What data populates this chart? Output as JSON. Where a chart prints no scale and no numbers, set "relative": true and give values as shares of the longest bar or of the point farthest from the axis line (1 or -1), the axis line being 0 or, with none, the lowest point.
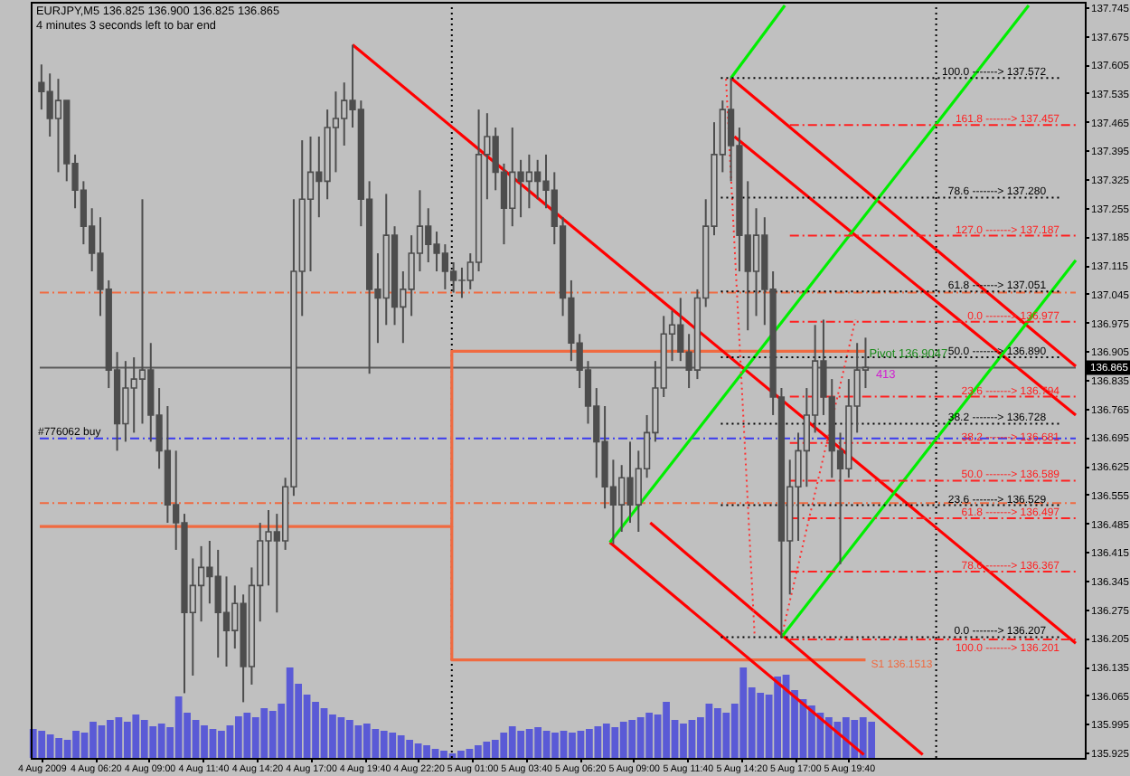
{
  "chart_data": [
    {
      "type": "candlestick",
      "title": "EURJPY,M5 136.825 136.900 136.825 136.865",
      "subtitle": "4 minutes 3 seconds left to bar end",
      "color": "#4d4d4d",
      "x": [
        "2009-08-04T03:40",
        "2009-08-04T04:05",
        "2009-08-04T04:30",
        "2009-08-04T04:55",
        "2009-08-04T05:20",
        "2009-08-04T05:45",
        "2009-08-04T06:10",
        "2009-08-04T06:35",
        "2009-08-04T07:00",
        "2009-08-04T07:25",
        "2009-08-04T07:50",
        "2009-08-04T08:15",
        "2009-08-04T08:40",
        "2009-08-04T09:05",
        "2009-08-04T09:30",
        "2009-08-04T09:55",
        "2009-08-04T10:20",
        "2009-08-04T10:45",
        "2009-08-04T11:10",
        "2009-08-04T11:35",
        "2009-08-04T12:00",
        "2009-08-04T12:25",
        "2009-08-04T12:50",
        "2009-08-04T13:15",
        "2009-08-04T13:40",
        "2009-08-04T14:05",
        "2009-08-04T14:30",
        "2009-08-04T14:55",
        "2009-08-04T15:20",
        "2009-08-04T15:45",
        "2009-08-04T16:10",
        "2009-08-04T16:35",
        "2009-08-04T17:00",
        "2009-08-04T17:25",
        "2009-08-04T17:50",
        "2009-08-04T18:15",
        "2009-08-04T18:40",
        "2009-08-04T19:05",
        "2009-08-04T19:30",
        "2009-08-04T19:55",
        "2009-08-04T20:20",
        "2009-08-04T20:45",
        "2009-08-04T21:10",
        "2009-08-04T21:35",
        "2009-08-04T22:00",
        "2009-08-04T22:25",
        "2009-08-04T22:50",
        "2009-08-04T23:15",
        "2009-08-04T23:40",
        "2009-08-05T00:05",
        "2009-08-05T00:30",
        "2009-08-05T00:55",
        "2009-08-05T01:20",
        "2009-08-05T01:45",
        "2009-08-05T02:10",
        "2009-08-05T02:35",
        "2009-08-05T03:00",
        "2009-08-05T03:25",
        "2009-08-05T03:50",
        "2009-08-05T04:15",
        "2009-08-05T04:40",
        "2009-08-05T05:05",
        "2009-08-05T05:30",
        "2009-08-05T05:55",
        "2009-08-05T06:20",
        "2009-08-05T06:45",
        "2009-08-05T07:10",
        "2009-08-05T07:35",
        "2009-08-05T08:00",
        "2009-08-05T08:25",
        "2009-08-05T08:50",
        "2009-08-05T09:15",
        "2009-08-05T09:40",
        "2009-08-05T10:05",
        "2009-08-05T10:30",
        "2009-08-05T10:55",
        "2009-08-05T11:20",
        "2009-08-05T11:45",
        "2009-08-05T12:10",
        "2009-08-05T12:35",
        "2009-08-05T13:00",
        "2009-08-05T13:25",
        "2009-08-05T13:50",
        "2009-08-05T14:15",
        "2009-08-05T14:40",
        "2009-08-05T15:05",
        "2009-08-05T15:30",
        "2009-08-05T15:55",
        "2009-08-05T16:20",
        "2009-08-05T16:45",
        "2009-08-05T17:10",
        "2009-08-05T17:35",
        "2009-08-05T18:00",
        "2009-08-05T18:25",
        "2009-08-05T18:50",
        "2009-08-05T19:15",
        "2009-08-05T19:40",
        "2009-08-05T20:05",
        "2009-08-05T20:30"
      ],
      "ohlc": [
        [
          137.561,
          137.605,
          137.495,
          137.539
        ],
        [
          137.539,
          137.583,
          137.429,
          137.473
        ],
        [
          137.473,
          137.57,
          137.342,
          137.517
        ],
        [
          137.517,
          137.517,
          137.32,
          137.363
        ],
        [
          137.363,
          137.385,
          137.254,
          137.298
        ],
        [
          137.298,
          137.32,
          137.166,
          137.21
        ],
        [
          137.21,
          137.254,
          137.1,
          137.144
        ],
        [
          137.144,
          137.232,
          136.991,
          137.056
        ],
        [
          137.056,
          137.078,
          136.815,
          136.859
        ],
        [
          136.859,
          136.903,
          136.662,
          136.728
        ],
        [
          136.728,
          136.881,
          136.684,
          136.815
        ],
        [
          136.815,
          136.89,
          136.706,
          136.837
        ],
        [
          136.837,
          137.276,
          136.728,
          136.859
        ],
        [
          136.859,
          136.925,
          136.684,
          136.749
        ],
        [
          136.749,
          136.815,
          136.618,
          136.662
        ],
        [
          136.662,
          136.771,
          136.486,
          136.53
        ],
        [
          136.53,
          136.662,
          136.42,
          136.486
        ],
        [
          136.486,
          136.508,
          136.07,
          136.267
        ],
        [
          136.267,
          136.399,
          136.113,
          136.333
        ],
        [
          136.333,
          136.429,
          136.245,
          136.377
        ],
        [
          136.377,
          136.442,
          136.289,
          136.355
        ],
        [
          136.355,
          136.42,
          136.157,
          136.267
        ],
        [
          136.267,
          136.355,
          136.135,
          136.223
        ],
        [
          136.223,
          136.333,
          136.179,
          136.289
        ],
        [
          136.289,
          136.311,
          136.048,
          136.135
        ],
        [
          136.135,
          136.377,
          136.091,
          136.333
        ],
        [
          136.333,
          136.486,
          136.245,
          136.442
        ],
        [
          136.442,
          136.517,
          136.333,
          136.464
        ],
        [
          136.464,
          136.508,
          136.267,
          136.442
        ],
        [
          136.442,
          136.596,
          136.42,
          136.574
        ],
        [
          136.574,
          137.276,
          136.552,
          137.1
        ],
        [
          137.1,
          137.42,
          136.991,
          137.276
        ],
        [
          137.276,
          137.429,
          137.1,
          137.342
        ],
        [
          137.342,
          137.429,
          137.232,
          137.32
        ],
        [
          137.32,
          137.495,
          137.276,
          137.451
        ],
        [
          137.451,
          137.539,
          137.342,
          137.473
        ],
        [
          137.473,
          137.561,
          137.407,
          137.517
        ],
        [
          137.517,
          137.653,
          137.451,
          137.495
        ],
        [
          137.495,
          137.517,
          137.21,
          137.276
        ],
        [
          137.276,
          137.32,
          136.85,
          137.056
        ],
        [
          137.056,
          137.144,
          136.925,
          137.035
        ],
        [
          137.035,
          137.289,
          136.969,
          137.188
        ],
        [
          137.188,
          137.21,
          136.969,
          137.013
        ],
        [
          137.013,
          137.1,
          136.925,
          137.056
        ],
        [
          137.056,
          137.188,
          136.991,
          137.144
        ],
        [
          137.144,
          137.298,
          137.1,
          137.21
        ],
        [
          137.21,
          137.254,
          137.122,
          137.166
        ],
        [
          137.166,
          137.197,
          137.1,
          137.144
        ],
        [
          137.144,
          137.166,
          137.056,
          137.1
        ],
        [
          137.1,
          137.122,
          137.048,
          137.078
        ],
        [
          137.078,
          137.109,
          137.035,
          137.078
        ],
        [
          137.078,
          137.144,
          137.056,
          137.122
        ],
        [
          137.122,
          137.495,
          137.1,
          137.385
        ],
        [
          137.385,
          137.486,
          137.276,
          137.429
        ],
        [
          137.429,
          137.451,
          137.298,
          137.342
        ],
        [
          137.342,
          137.363,
          137.166,
          137.254
        ],
        [
          137.254,
          137.451,
          137.21,
          137.342
        ],
        [
          137.342,
          137.372,
          137.232,
          137.32
        ],
        [
          137.32,
          137.385,
          137.254,
          137.342
        ],
        [
          137.342,
          137.372,
          137.276,
          137.32
        ],
        [
          137.32,
          137.385,
          137.254,
          137.298
        ],
        [
          137.298,
          137.342,
          137.166,
          137.21
        ],
        [
          137.21,
          137.232,
          136.991,
          137.035
        ],
        [
          137.035,
          137.078,
          136.881,
          136.925
        ],
        [
          136.925,
          136.947,
          136.815,
          136.859
        ],
        [
          136.859,
          136.881,
          136.728,
          136.771
        ],
        [
          136.771,
          136.815,
          136.596,
          136.684
        ],
        [
          136.684,
          136.771,
          136.521,
          136.574
        ],
        [
          136.574,
          136.64,
          136.434,
          136.53
        ],
        [
          136.53,
          136.627,
          136.464,
          136.596
        ],
        [
          136.596,
          136.684,
          136.486,
          136.53
        ],
        [
          136.53,
          136.662,
          136.464,
          136.618
        ],
        [
          136.618,
          136.749,
          136.596,
          136.706
        ],
        [
          136.706,
          136.881,
          136.684,
          136.815
        ],
        [
          136.815,
          136.991,
          136.793,
          136.947
        ],
        [
          136.947,
          137.004,
          136.881,
          136.969
        ],
        [
          136.969,
          137.035,
          136.881,
          136.903
        ],
        [
          136.903,
          136.947,
          136.815,
          136.859
        ],
        [
          136.859,
          137.056,
          136.837,
          137.035
        ],
        [
          137.035,
          137.276,
          137.013,
          137.21
        ],
        [
          137.21,
          137.464,
          137.188,
          137.385
        ],
        [
          137.385,
          137.517,
          137.342,
          137.495
        ],
        [
          137.495,
          137.572,
          137.32,
          137.407
        ],
        [
          137.407,
          137.451,
          137.1,
          137.188
        ],
        [
          137.188,
          137.32,
          136.956,
          137.1
        ],
        [
          137.1,
          137.254,
          136.991,
          137.188
        ],
        [
          137.188,
          137.232,
          136.969,
          137.056
        ],
        [
          137.056,
          137.1,
          136.749,
          136.793
        ],
        [
          136.793,
          136.815,
          136.207,
          136.442
        ],
        [
          136.442,
          136.64,
          136.311,
          136.574
        ],
        [
          136.574,
          136.706,
          136.442,
          136.662
        ],
        [
          136.662,
          136.815,
          136.574,
          136.749
        ],
        [
          136.749,
          136.969,
          136.706,
          136.881
        ],
        [
          136.881,
          136.982,
          136.749,
          136.793
        ],
        [
          136.793,
          136.837,
          136.596,
          136.662
        ],
        [
          136.662,
          136.706,
          136.385,
          136.618
        ],
        [
          136.618,
          136.837,
          136.596,
          136.771
        ],
        [
          136.771,
          136.925,
          136.706,
          136.859
        ],
        [
          136.859,
          136.938,
          136.815,
          136.865
        ]
      ],
      "xlim": [
        "2009-08-04T03:35",
        "2009-08-06T06:55"
      ],
      "xticks": [
        {
          "value": "2009-08-04T03:40",
          "label": "4 Aug 2009"
        },
        {
          "value": "2009-08-04T06:20",
          "label": "4 Aug 06:20"
        },
        {
          "value": "2009-08-04T09:00",
          "label": "4 Aug 09:00"
        },
        {
          "value": "2009-08-04T11:40",
          "label": "4 Aug 11:40"
        },
        {
          "value": "2009-08-04T14:20",
          "label": "4 Aug 14:20"
        },
        {
          "value": "2009-08-04T17:00",
          "label": "4 Aug 17:00"
        },
        {
          "value": "2009-08-04T19:40",
          "label": "4 Aug 19:40"
        },
        {
          "value": "2009-08-04T22:20",
          "label": "4 Aug 22:20"
        },
        {
          "value": "2009-08-05T01:00",
          "label": "5 Aug 01:00"
        },
        {
          "value": "2009-08-05T03:40",
          "label": "5 Aug 03:40"
        },
        {
          "value": "2009-08-05T06:20",
          "label": "5 Aug 06:20"
        },
        {
          "value": "2009-08-05T09:00",
          "label": "5 Aug 09:00"
        },
        {
          "value": "2009-08-05T11:40",
          "label": "5 Aug 11:40"
        },
        {
          "value": "2009-08-05T14:20",
          "label": "5 Aug 14:20"
        },
        {
          "value": "2009-08-05T17:00",
          "label": "5 Aug 17:00"
        },
        {
          "value": "2009-08-05T19:40",
          "label": "5 Aug 19:40"
        }
      ],
      "ylim": [
        135.912,
        137.758
      ],
      "yticks": [
        135.925,
        135.995,
        136.065,
        136.135,
        136.205,
        136.275,
        136.345,
        136.415,
        136.485,
        136.555,
        136.625,
        136.695,
        136.765,
        136.835,
        136.905,
        136.975,
        137.045,
        137.115,
        137.185,
        137.255,
        137.325,
        137.395,
        137.465,
        137.535,
        137.605,
        137.675,
        137.745
      ],
      "ref_lines": [
        {
          "axis": "x",
          "value": "2009-08-05T00:00",
          "color": "#000000",
          "line_style": "dotted"
        },
        {
          "axis": "x",
          "value": "2009-08-06T00:00",
          "color": "#000000",
          "line_style": "dotted"
        },
        {
          "axis": "y",
          "value": 137.048,
          "color": "#f06a40",
          "line_style": "dashed"
        },
        {
          "axis": "y",
          "value": 136.534,
          "color": "#f06a40",
          "line_style": "dashed"
        },
        {
          "axis": "y",
          "value": 136.692,
          "color": "#3a3af0",
          "line_style": "dashed",
          "label": "#776062 buy"
        },
        {
          "axis": "y",
          "value": 136.865,
          "color": "#5a5a5a",
          "line_style": "solid",
          "label": "136.865"
        }
      ],
      "annotations": [
        {
          "text": "Pivot 136.9047",
          "x": "2009-08-05T20:30",
          "y": 136.9047
        },
        {
          "text": "413",
          "x": "2009-08-05T20:50",
          "y": 136.855
        }
      ],
      "series": [
        {
          "type": "line",
          "x": [
            "2009-08-04T03:35",
            "2009-08-05T00:00",
            "2009-08-05T00:00",
            "2009-08-05T20:30"
          ],
          "values": [
            136.477,
            136.477,
            136.9047,
            136.9047
          ],
          "color": "#f06a40",
          "line_style": "solid"
        },
        {
          "type": "line",
          "name": "S1 136.1513",
          "x": [
            "2009-08-05T00:00",
            "2009-08-05T00:00",
            "2009-08-05T20:30"
          ],
          "values": [
            136.477,
            136.1513,
            136.1513
          ],
          "color": "#f06a40",
          "line_style": "solid"
        },
        {
          "type": "line",
          "x": [
            "2009-08-04T19:05",
            "2009-08-06T06:55"
          ],
          "values": [
            137.653,
            136.192
          ],
          "color": "#ff0000",
          "line_style": "solid"
        },
        {
          "type": "line",
          "x": [
            "2009-08-05T13:50",
            "2009-08-06T06:55"
          ],
          "values": [
            137.572,
            136.868
          ],
          "color": "#ff0000",
          "line_style": "solid"
        },
        {
          "type": "line",
          "x": [
            "2009-08-05T14:00",
            "2009-08-06T06:55"
          ],
          "values": [
            137.429,
            136.749
          ],
          "color": "#ff0000",
          "line_style": "solid"
        },
        {
          "type": "line",
          "x": [
            "2009-08-05T07:50",
            "2009-08-05T20:25"
          ],
          "values": [
            136.438,
            135.92
          ],
          "color": "#ff0000",
          "line_style": "solid"
        },
        {
          "type": "line",
          "x": [
            "2009-08-05T09:50",
            "2009-08-05T23:20"
          ],
          "values": [
            136.486,
            135.92
          ],
          "color": "#ff0000",
          "line_style": "solid"
        },
        {
          "type": "line",
          "x": [
            "2009-08-05T13:50",
            "2009-08-05T16:30"
          ],
          "values": [
            137.572,
            137.749
          ],
          "color": "#00ee00",
          "line_style": "solid"
        },
        {
          "type": "line",
          "x": [
            "2009-08-05T07:50",
            "2009-08-06T04:35"
          ],
          "values": [
            136.438,
            137.749
          ],
          "color": "#00ee00",
          "line_style": "solid"
        },
        {
          "type": "line",
          "x": [
            "2009-08-05T16:20",
            "2009-08-06T06:55"
          ],
          "values": [
            136.207,
            137.127
          ],
          "color": "#00ee00",
          "line_style": "solid"
        },
        {
          "type": "line",
          "x": [
            "2009-08-05T13:35",
            "2009-08-05T15:00"
          ],
          "values": [
            137.57,
            136.214
          ],
          "color": "#ff3030",
          "line_style": "dotted"
        },
        {
          "type": "line",
          "x": [
            "2009-08-05T16:20",
            "2009-08-05T20:00"
          ],
          "values": [
            136.207,
            136.982
          ],
          "color": "#ff3030",
          "line_style": "dotted"
        },
        {
          "type": "line",
          "name": "100.0 -------> 137.572",
          "x": [
            "2009-08-05T13:20",
            "2009-08-06T06:15"
          ],
          "values": [
            137.572,
            137.572
          ],
          "color": "#000000",
          "line_style": "dotted"
        },
        {
          "type": "line",
          "name": "78.6 -------> 137.280",
          "x": [
            "2009-08-05T13:20",
            "2009-08-06T06:15"
          ],
          "values": [
            137.28,
            137.28
          ],
          "color": "#000000",
          "line_style": "dotted"
        },
        {
          "type": "line",
          "name": "61.8 -------> 137.051",
          "x": [
            "2009-08-05T13:20",
            "2009-08-06T06:15"
          ],
          "values": [
            137.051,
            137.051
          ],
          "color": "#000000",
          "line_style": "dotted"
        },
        {
          "type": "line",
          "name": "50.0 -------> 136.890",
          "x": [
            "2009-08-05T13:20",
            "2009-08-06T06:15"
          ],
          "values": [
            136.89,
            136.89
          ],
          "color": "#000000",
          "line_style": "dotted"
        },
        {
          "type": "line",
          "name": "38.2 -------> 136.728",
          "x": [
            "2009-08-05T13:20",
            "2009-08-06T06:15"
          ],
          "values": [
            136.728,
            136.728
          ],
          "color": "#000000",
          "line_style": "dotted"
        },
        {
          "type": "line",
          "name": "23.6 -------> 136.529",
          "x": [
            "2009-08-05T13:20",
            "2009-08-06T06:15"
          ],
          "values": [
            136.529,
            136.529
          ],
          "color": "#000000",
          "line_style": "dotted"
        },
        {
          "type": "line",
          "name": "0.0 -------> 136.207",
          "x": [
            "2009-08-05T13:20",
            "2009-08-06T06:15"
          ],
          "values": [
            136.207,
            136.207
          ],
          "color": "#000000",
          "line_style": "dotted"
        },
        {
          "type": "line",
          "name": "161.8 -------> 137.457",
          "x": [
            "2009-08-05T16:45",
            "2009-08-06T06:55"
          ],
          "values": [
            137.457,
            137.457
          ],
          "color": "#ff2020",
          "line_style": "dashed"
        },
        {
          "type": "line",
          "name": "127.0 -------> 137.187",
          "x": [
            "2009-08-05T16:45",
            "2009-08-06T06:55"
          ],
          "values": [
            137.187,
            137.187
          ],
          "color": "#ff2020",
          "line_style": "dashed"
        },
        {
          "type": "line",
          "name": "0.0 -------> 136.977",
          "x": [
            "2009-08-05T16:45",
            "2009-08-06T06:55"
          ],
          "values": [
            136.977,
            136.977
          ],
          "color": "#ff2020",
          "line_style": "dashed"
        },
        {
          "type": "line",
          "name": "23.6 -------> 136.794",
          "x": [
            "2009-08-05T16:45",
            "2009-08-06T06:55"
          ],
          "values": [
            136.794,
            136.794
          ],
          "color": "#ff2020",
          "line_style": "dashed"
        },
        {
          "type": "line",
          "name": "38.2 -------> 136.681",
          "x": [
            "2009-08-05T16:45",
            "2009-08-06T06:55"
          ],
          "values": [
            136.681,
            136.681
          ],
          "color": "#ff2020",
          "line_style": "dashed"
        },
        {
          "type": "line",
          "name": "50.0 -------> 136.589",
          "x": [
            "2009-08-05T16:45",
            "2009-08-06T06:55"
          ],
          "values": [
            136.589,
            136.589
          ],
          "color": "#ff2020",
          "line_style": "dashed"
        },
        {
          "type": "line",
          "name": "61.8 -------> 136.497",
          "x": [
            "2009-08-05T16:45",
            "2009-08-06T06:55"
          ],
          "values": [
            136.497,
            136.497
          ],
          "color": "#ff2020",
          "line_style": "dashed"
        },
        {
          "type": "line",
          "name": "78.6 -------> 136.367",
          "x": [
            "2009-08-05T16:45",
            "2009-08-06T06:55"
          ],
          "values": [
            136.367,
            136.367
          ],
          "color": "#ff2020",
          "line_style": "dashed"
        },
        {
          "type": "line",
          "name": "100.0 -------> 136.201",
          "x": [
            "2009-08-05T16:45",
            "2009-08-06T06:55"
          ],
          "values": [
            136.201,
            136.201
          ],
          "color": "#ff2020",
          "line_style": "dashed"
        }
      ]
    },
    {
      "type": "bar",
      "relative": true,
      "color": "#5a5ad6",
      "categories": [
        null,
        null,
        null,
        null,
        null,
        null,
        null,
        null,
        null,
        null,
        null,
        null,
        null,
        null,
        null,
        null,
        null,
        null,
        null,
        null,
        null,
        null,
        null,
        null,
        null,
        null,
        null,
        null,
        null,
        null,
        null,
        null,
        null,
        null,
        null,
        null,
        null,
        null,
        null,
        null,
        null,
        null,
        null,
        null,
        null,
        null,
        null,
        null,
        null,
        null,
        null,
        null,
        null,
        null,
        null,
        null,
        null,
        null,
        null,
        null,
        null,
        null,
        null,
        null,
        null,
        null,
        null,
        null,
        null,
        null,
        null,
        null,
        null,
        null,
        null,
        null,
        null,
        null,
        null,
        null,
        null,
        null,
        null,
        null,
        null,
        null,
        null,
        null,
        null,
        null,
        null,
        null,
        null,
        null,
        null,
        null,
        null,
        null,
        null
      ],
      "values": [
        0.32,
        0.3,
        0.26,
        0.22,
        0.2,
        0.3,
        0.28,
        0.4,
        0.36,
        0.42,
        0.45,
        0.4,
        0.48,
        0.42,
        0.35,
        0.38,
        0.34,
        0.68,
        0.5,
        0.42,
        0.36,
        0.32,
        0.3,
        0.36,
        0.46,
        0.5,
        0.45,
        0.55,
        0.52,
        0.6,
        1.0,
        0.82,
        0.7,
        0.62,
        0.55,
        0.48,
        0.45,
        0.42,
        0.36,
        0.38,
        0.32,
        0.3,
        0.28,
        0.25,
        0.2,
        0.16,
        0.14,
        0.1,
        0.08,
        0.05,
        0.08,
        0.1,
        0.14,
        0.18,
        0.2,
        0.28,
        0.35,
        0.3,
        0.32,
        0.34,
        0.3,
        0.28,
        0.3,
        0.28,
        0.3,
        0.32,
        0.35,
        0.38,
        0.34,
        0.4,
        0.42,
        0.45,
        0.5,
        0.48,
        0.62,
        0.42,
        0.38,
        0.42,
        0.45,
        0.6,
        0.55,
        0.5,
        0.6,
        1.0,
        0.78,
        0.72,
        0.7,
        0.9,
        0.92,
        0.75,
        0.65,
        0.58,
        0.5,
        0.45,
        0.4,
        0.45,
        0.42,
        0.45,
        0.4
      ]
    }
  ]
}
